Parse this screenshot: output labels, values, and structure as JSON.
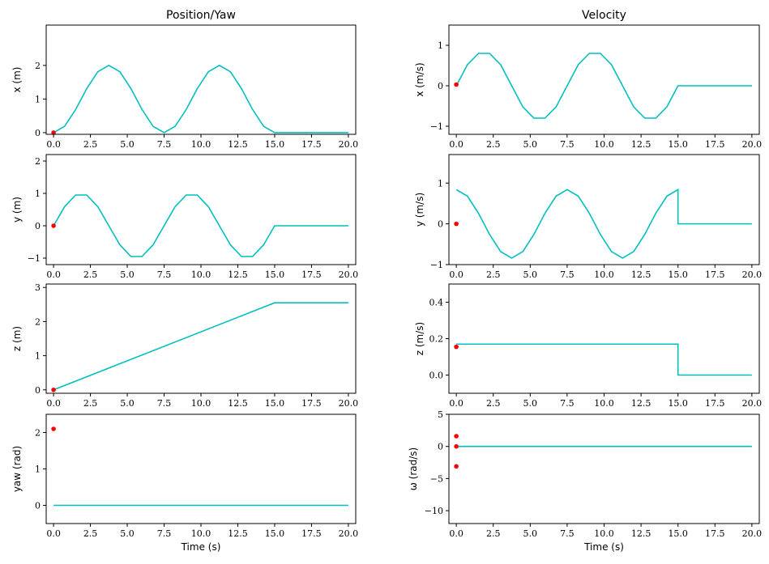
{
  "colors": {
    "line": "#00bfbf",
    "point": "#ff0000",
    "axis": "#000000"
  },
  "chart_data": [
    {
      "type": "line",
      "title": "Position/Yaw",
      "xlabel": "",
      "ylabel": "x (m)",
      "xlim": [
        -0.5,
        20.5
      ],
      "ylim": [
        -0.05,
        3.2
      ],
      "yticks": [
        0,
        1,
        2
      ],
      "xticks": [
        0,
        2.5,
        5,
        7.5,
        10,
        12.5,
        15,
        17.5,
        20
      ],
      "xticklabels": [
        "0.0",
        "2.5",
        "5.0",
        "7.5",
        "10.0",
        "12.5",
        "15.0",
        "17.5",
        "20.0"
      ],
      "series": [
        {
          "x": [
            0,
            0.75,
            1.5,
            2.25,
            3,
            3.75,
            4.5,
            5.25,
            6,
            6.75,
            7.5,
            8.25,
            9,
            9.75,
            10.5,
            11.25,
            12,
            12.75,
            13.5,
            14.25,
            15,
            20
          ],
          "y": [
            0,
            0.19,
            0.69,
            1.31,
            1.81,
            2,
            1.81,
            1.31,
            0.69,
            0.19,
            0,
            0.19,
            0.69,
            1.31,
            1.81,
            2,
            1.81,
            1.31,
            0.69,
            0.19,
            0,
            0
          ]
        }
      ],
      "points": [
        {
          "x": 0,
          "y": 0
        }
      ]
    },
    {
      "type": "line",
      "title": "Velocity",
      "xlabel": "",
      "ylabel": "x (m/s)",
      "xlim": [
        -0.5,
        20.5
      ],
      "ylim": [
        -1.2,
        1.5
      ],
      "yticks": [
        -1,
        0,
        1
      ],
      "xticks": [
        0,
        2.5,
        5,
        7.5,
        10,
        12.5,
        15,
        17.5,
        20
      ],
      "xticklabels": [
        "0.0",
        "2.5",
        "5.0",
        "7.5",
        "10.0",
        "12.5",
        "15.0",
        "17.5",
        "20.0"
      ],
      "series": [
        {
          "x": [
            0,
            0.75,
            1.5,
            2.25,
            3,
            3.75,
            4.5,
            5.25,
            6,
            6.75,
            7.5,
            8.25,
            9,
            9.75,
            10.5,
            11.25,
            12,
            12.75,
            13.5,
            14.25,
            15,
            20
          ],
          "y": [
            0,
            0.52,
            0.8,
            0.8,
            0.52,
            0,
            -0.52,
            -0.8,
            -0.8,
            -0.52,
            0,
            0.52,
            0.8,
            0.8,
            0.52,
            0,
            -0.52,
            -0.8,
            -0.8,
            -0.52,
            0,
            0
          ]
        }
      ],
      "points": [
        {
          "x": 0,
          "y": 0.03
        }
      ]
    },
    {
      "type": "line",
      "title": "",
      "xlabel": "",
      "ylabel": "y (m)",
      "xlim": [
        -0.5,
        20.5
      ],
      "ylim": [
        -1.2,
        2.2
      ],
      "yticks": [
        -1,
        0,
        1,
        2
      ],
      "xticks": [
        0,
        2.5,
        5,
        7.5,
        10,
        12.5,
        15,
        17.5,
        20
      ],
      "xticklabels": [
        "0.0",
        "2.5",
        "5.0",
        "7.5",
        "10.0",
        "12.5",
        "15.0",
        "17.5",
        "20.0"
      ],
      "series": [
        {
          "x": [
            0,
            0.75,
            1.5,
            2.25,
            3,
            3.75,
            4.5,
            5.25,
            6,
            6.75,
            7.5,
            8.25,
            9,
            9.75,
            10.5,
            11.25,
            12,
            12.75,
            13.5,
            14.25,
            15,
            20
          ],
          "y": [
            0,
            0.59,
            0.95,
            0.95,
            0.59,
            0,
            -0.59,
            -0.95,
            -0.95,
            -0.59,
            0,
            0.59,
            0.95,
            0.95,
            0.59,
            0,
            -0.59,
            -0.95,
            -0.95,
            -0.59,
            0,
            0
          ]
        }
      ],
      "points": [
        {
          "x": 0,
          "y": 0
        }
      ]
    },
    {
      "type": "line",
      "title": "",
      "xlabel": "",
      "ylabel": "y (m/s)",
      "xlim": [
        -0.5,
        20.5
      ],
      "ylim": [
        -1,
        1.7
      ],
      "yticks": [
        -1,
        0,
        1
      ],
      "xticks": [
        0,
        2.5,
        5,
        7.5,
        10,
        12.5,
        15,
        17.5,
        20
      ],
      "xticklabels": [
        "0.0",
        "2.5",
        "5.0",
        "7.5",
        "10.0",
        "12.5",
        "15.0",
        "17.5",
        "20.0"
      ],
      "series": [
        {
          "x": [
            0,
            0.75,
            1.5,
            2.25,
            3,
            3.75,
            4.5,
            5.25,
            6,
            6.75,
            7.5,
            8.25,
            9,
            9.75,
            10.5,
            11.25,
            12,
            12.75,
            13.5,
            14.25,
            15,
            15,
            20
          ],
          "y": [
            0.84,
            0.68,
            0.26,
            -0.26,
            -0.68,
            -0.84,
            -0.68,
            -0.26,
            0.26,
            0.68,
            0.84,
            0.68,
            0.26,
            -0.26,
            -0.68,
            -0.84,
            -0.68,
            -0.26,
            0.26,
            0.68,
            0.84,
            0,
            0
          ]
        }
      ],
      "points": [
        {
          "x": 0,
          "y": 0
        }
      ]
    },
    {
      "type": "line",
      "title": "",
      "xlabel": "",
      "ylabel": "z (m)",
      "xlim": [
        -0.5,
        20.5
      ],
      "ylim": [
        -0.1,
        3.1
      ],
      "yticks": [
        0,
        1,
        2,
        3
      ],
      "xticks": [
        0,
        2.5,
        5,
        7.5,
        10,
        12.5,
        15,
        17.5,
        20
      ],
      "xticklabels": [
        "0.0",
        "2.5",
        "5.0",
        "7.5",
        "10.0",
        "12.5",
        "15.0",
        "17.5",
        "20.0"
      ],
      "series": [
        {
          "x": [
            0,
            15,
            20
          ],
          "y": [
            0,
            2.55,
            2.55
          ]
        }
      ],
      "points": [
        {
          "x": 0,
          "y": 0
        }
      ]
    },
    {
      "type": "line",
      "title": "",
      "xlabel": "",
      "ylabel": "z (m/s)",
      "xlim": [
        -0.5,
        20.5
      ],
      "ylim": [
        -0.1,
        0.5
      ],
      "yticks": [
        0,
        0.2,
        0.4
      ],
      "yticklabels": [
        "0.0",
        "0.2",
        "0.4"
      ],
      "xticks": [
        0,
        2.5,
        5,
        7.5,
        10,
        12.5,
        15,
        17.5,
        20
      ],
      "xticklabels": [
        "0.0",
        "2.5",
        "5.0",
        "7.5",
        "10.0",
        "12.5",
        "15.0",
        "17.5",
        "20.0"
      ],
      "series": [
        {
          "x": [
            0,
            15,
            15,
            20
          ],
          "y": [
            0.17,
            0.17,
            0,
            0
          ]
        }
      ],
      "points": [
        {
          "x": 0,
          "y": 0.155
        }
      ]
    },
    {
      "type": "line",
      "title": "",
      "xlabel": "Time (s)",
      "ylabel": "yaw (rad)",
      "xlim": [
        -0.5,
        20.5
      ],
      "ylim": [
        -0.5,
        2.5
      ],
      "yticks": [
        0,
        1,
        2
      ],
      "xticks": [
        0,
        2.5,
        5,
        7.5,
        10,
        12.5,
        15,
        17.5,
        20
      ],
      "xticklabels": [
        "0.0",
        "2.5",
        "5.0",
        "7.5",
        "10.0",
        "12.5",
        "15.0",
        "17.5",
        "20.0"
      ],
      "series": [
        {
          "x": [
            0,
            20
          ],
          "y": [
            0,
            0
          ]
        }
      ],
      "points": [
        {
          "x": 0,
          "y": 2.1
        }
      ]
    },
    {
      "type": "line",
      "title": "",
      "xlabel": "Time (s)",
      "ylabel": "ω (rad/s)",
      "xlim": [
        -0.5,
        20.5
      ],
      "ylim": [
        -12,
        5
      ],
      "yticks": [
        -10,
        -5,
        0,
        5
      ],
      "xticks": [
        0,
        2.5,
        5,
        7.5,
        10,
        12.5,
        15,
        17.5,
        20
      ],
      "xticklabels": [
        "0.0",
        "2.5",
        "5.0",
        "7.5",
        "10.0",
        "12.5",
        "15.0",
        "17.5",
        "20.0"
      ],
      "series": [
        {
          "x": [
            0,
            20
          ],
          "y": [
            0,
            0
          ]
        }
      ],
      "points": [
        {
          "x": 0,
          "y": 1.6
        },
        {
          "x": 0,
          "y": 0
        },
        {
          "x": 0,
          "y": -3.1
        }
      ]
    }
  ]
}
